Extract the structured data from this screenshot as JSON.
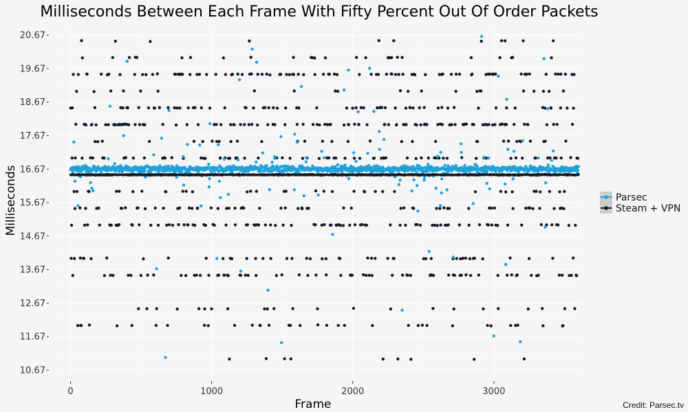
{
  "chart_data": {
    "type": "scatter",
    "title": "Milliseconds Between Each Frame With Fifty Percent Out Of Order Packets",
    "xlabel": "Frame",
    "ylabel": "Milliseconds",
    "xlim": [
      -100,
      3620
    ],
    "ylim": [
      10.4,
      20.9
    ],
    "x_ticks": [
      0,
      1000,
      2000,
      3000
    ],
    "x_tick_labels": [
      "0",
      "1000",
      "2000",
      "3000"
    ],
    "y_ticks": [
      10.67,
      11.67,
      12.67,
      13.67,
      14.67,
      15.67,
      16.67,
      17.67,
      18.67,
      19.67,
      20.67
    ],
    "y_tick_labels": [
      "10.67",
      "11.67",
      "12.67",
      "13.67",
      "14.67",
      "15.67",
      "16.67",
      "17.67",
      "18.67",
      "19.67",
      "20.67"
    ],
    "grid": true,
    "legend_position": "right",
    "frame_count": 3600,
    "series": [
      {
        "name": "Parsec",
        "color": "#1fa2db",
        "main_level": 16.67,
        "bands": [
          {
            "y": 16.67,
            "fraction": 0.76
          }
        ],
        "outlier_range": [
          10.8,
          20.67
        ]
      },
      {
        "name": "Steam + VPN",
        "color": "#141a26",
        "bands": [
          {
            "y": 16.5,
            "fraction": 0.24
          },
          {
            "y": 16.0,
            "fraction": 0.03
          },
          {
            "y": 17.0,
            "fraction": 0.06
          },
          {
            "y": 15.5,
            "fraction": 0.05
          },
          {
            "y": 18.0,
            "fraction": 0.08
          },
          {
            "y": 15.0,
            "fraction": 0.07
          },
          {
            "y": 19.5,
            "fraction": 0.07
          },
          {
            "y": 13.5,
            "fraction": 0.07
          },
          {
            "y": 18.5,
            "fraction": 0.05
          },
          {
            "y": 14.0,
            "fraction": 0.04
          },
          {
            "y": 17.5,
            "fraction": 0.03
          },
          {
            "y": 19.0,
            "fraction": 0.03
          },
          {
            "y": 20.0,
            "fraction": 0.04
          },
          {
            "y": 12.0,
            "fraction": 0.05
          },
          {
            "y": 12.5,
            "fraction": 0.03
          },
          {
            "y": 11.0,
            "fraction": 0.015
          },
          {
            "y": 20.5,
            "fraction": 0.01
          }
        ]
      }
    ],
    "credit": "Credit: Parsec.tv"
  }
}
